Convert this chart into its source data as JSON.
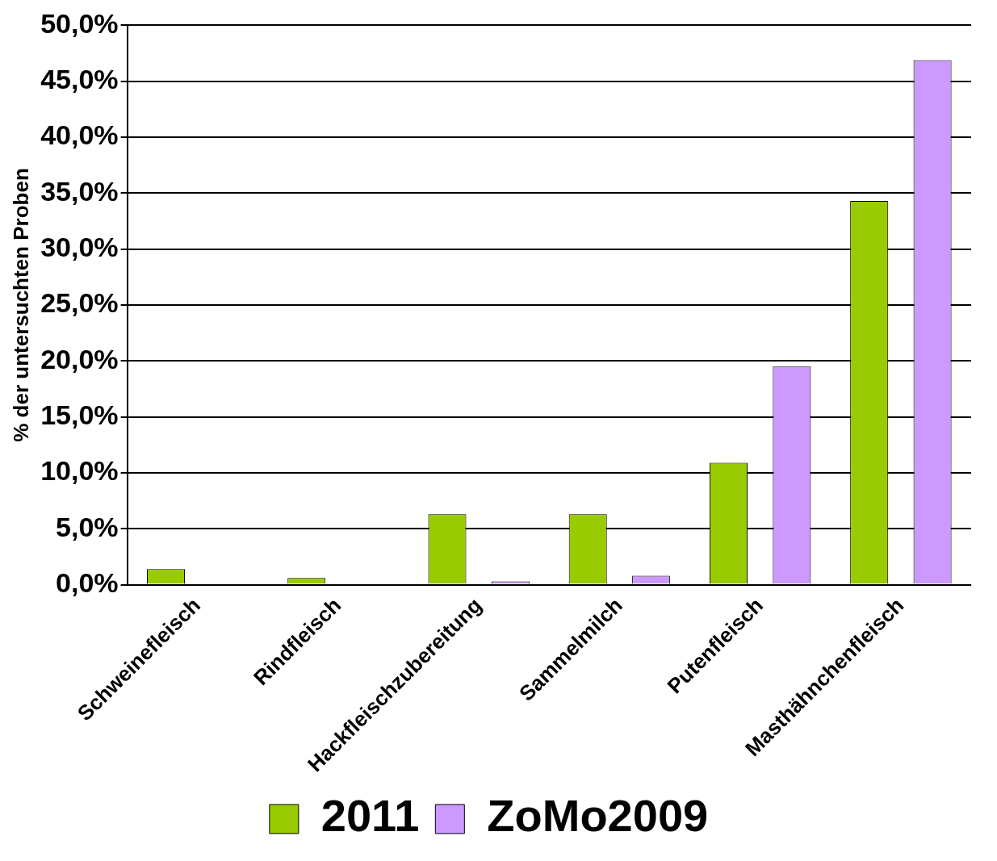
{
  "chart_data": {
    "type": "bar",
    "ylabel": "% der untersuchten Proben",
    "categories": [
      "Schweinefleisch",
      "Rindfleisch",
      "Hackfleischzubereitung",
      "Sammelmilch",
      "Putenfleisch",
      "Masthähnchenfleisch"
    ],
    "series": [
      {
        "name": "2011",
        "color": "#99cc00",
        "values": [
          1.4,
          0.6,
          6.3,
          6.3,
          10.9,
          34.3
        ]
      },
      {
        "name": "ZoMo2009",
        "color": "#cc99ff",
        "values": [
          0,
          0,
          0.3,
          0.8,
          19.5,
          46.9
        ]
      }
    ],
    "ylim": [
      0,
      50
    ],
    "yticks": [
      {
        "value": 0,
        "label": "0,0%"
      },
      {
        "value": 5,
        "label": "5,0%"
      },
      {
        "value": 10,
        "label": "10,0%"
      },
      {
        "value": 15,
        "label": "15,0%"
      },
      {
        "value": 20,
        "label": "20,0%"
      },
      {
        "value": 25,
        "label": "25,0%"
      },
      {
        "value": 30,
        "label": "30,0%"
      },
      {
        "value": 35,
        "label": "35,0%"
      },
      {
        "value": 40,
        "label": "40,0%"
      },
      {
        "value": 45,
        "label": "45,0%"
      },
      {
        "value": 50,
        "label": "50,0%"
      }
    ],
    "grid": "y",
    "legend": "bottom"
  }
}
